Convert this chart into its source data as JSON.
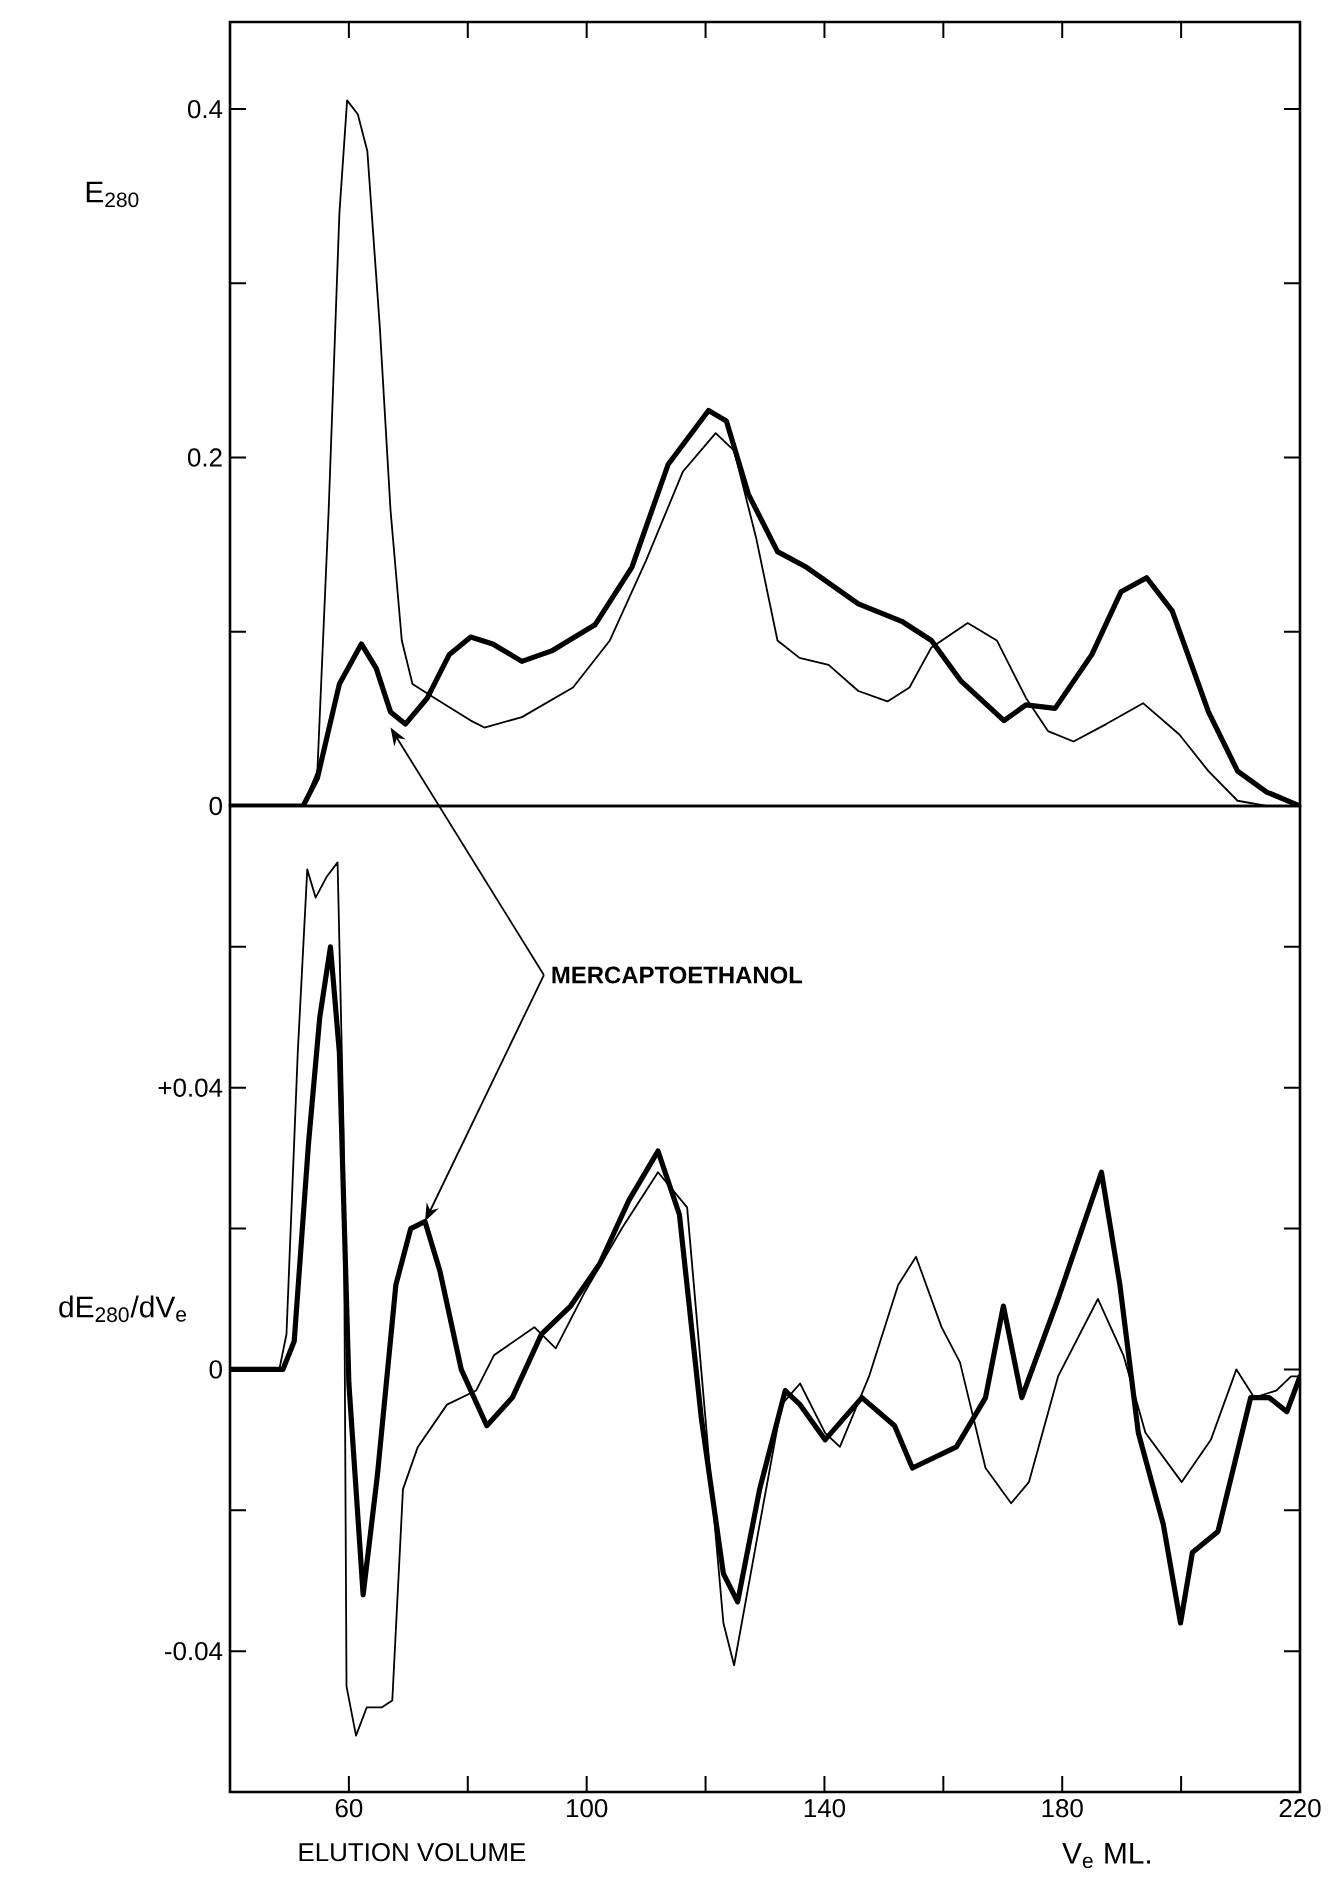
{
  "chart_data": [
    {
      "type": "line",
      "ylabel": "E$_{280}$",
      "xlim": [
        40,
        220
      ],
      "ylim": [
        0,
        0.45
      ],
      "xticks": [
        {
          "value": 60,
          "label": null
        },
        {
          "value": 80,
          "label": null
        },
        {
          "value": 100,
          "label": null
        },
        {
          "value": 120,
          "label": null
        },
        {
          "value": 140,
          "label": null
        },
        {
          "value": 160,
          "label": null
        },
        {
          "value": 180,
          "label": null
        },
        {
          "value": 200,
          "label": null
        }
      ],
      "yticks": [
        {
          "value": 0,
          "label": "0"
        },
        {
          "value": 0.1,
          "label": null
        },
        {
          "value": 0.2,
          "label": "0.2"
        },
        {
          "value": 0.3,
          "label": null
        },
        {
          "value": 0.4,
          "label": "0.4"
        }
      ],
      "tick_labels": "y",
      "marker": "none",
      "series": [
        {
          "color": "#000000",
          "x": [
            40,
            52.3,
            54.7,
            56.6,
            58.4,
            59.7,
            61.5,
            63.1,
            65.2,
            67.0,
            68.9,
            70.7,
            74.4,
            80.5,
            82.8,
            89.1,
            97.7,
            103.9,
            110.0,
            116.2,
            121.7,
            124.8,
            128.5,
            132.1,
            135.8,
            140.7,
            145.7,
            150.6,
            154.3,
            158.0,
            164.1,
            169.0,
            173.9,
            177.6,
            181.9,
            187.4,
            193.6,
            199.7,
            204.6,
            209.5,
            214.4,
            220
          ],
          "values": [
            0,
            0,
            0.02,
            0.17,
            0.34,
            0.405,
            0.397,
            0.376,
            0.275,
            0.17,
            0.095,
            0.07,
            0.062,
            0.049,
            0.045,
            0.051,
            0.068,
            0.095,
            0.141,
            0.192,
            0.214,
            0.204,
            0.154,
            0.095,
            0.085,
            0.081,
            0.066,
            0.06,
            0.068,
            0.091,
            0.105,
            0.095,
            0.062,
            0.043,
            0.037,
            0.047,
            0.059,
            0.041,
            0.02,
            0.003,
            0,
            0
          ]
        },
        {
          "color": "#000000",
          "x": [
            40,
            52.3,
            54.7,
            58.4,
            62.1,
            64.6,
            67.0,
            69.5,
            73.2,
            76.9,
            80.5,
            84.2,
            89.1,
            94.1,
            101.4,
            107.6,
            113.7,
            120.5,
            123.5,
            127.2,
            132.1,
            137.0,
            145.7,
            153.0,
            158.0,
            162.9,
            170.2,
            173.9,
            178.8,
            185.0,
            189.9,
            194.2,
            198.5,
            204.6,
            209.5,
            214.4,
            220
          ],
          "values": [
            0,
            0,
            0.016,
            0.07,
            0.093,
            0.079,
            0.054,
            0.047,
            0.062,
            0.087,
            0.097,
            0.093,
            0.083,
            0.089,
            0.104,
            0.137,
            0.196,
            0.227,
            0.221,
            0.179,
            0.146,
            0.137,
            0.116,
            0.106,
            0.095,
            0.072,
            0.049,
            0.058,
            0.056,
            0.087,
            0.123,
            0.131,
            0.112,
            0.054,
            0.02,
            0.008,
            0
          ]
        }
      ]
    },
    {
      "type": "line",
      "xlabel": "ELUTION VOLUME",
      "ylabel": "dE$_{280}$/dV$_{e}$",
      "xlim": [
        40,
        220
      ],
      "ylim": [
        -0.06,
        0.08
      ],
      "xticks": [
        60,
        {
          "value": 80,
          "label": null
        },
        100,
        {
          "value": 120,
          "label": null
        },
        140,
        {
          "value": 160,
          "label": null
        },
        180,
        {
          "value": 200,
          "label": null
        },
        220
      ],
      "yticks": [
        {
          "value": -0.04,
          "label": "-0.04"
        },
        {
          "value": -0.02,
          "label": null
        },
        {
          "value": 0,
          "label": "0"
        },
        {
          "value": 0.02,
          "label": null
        },
        {
          "value": 0.04,
          "label": "+0.04"
        },
        {
          "value": 0.06,
          "label": null
        }
      ],
      "marker": "none",
      "annotations": [
        {
          "text": "MERCAPTOETHANOL",
          "x": 72.8,
          "y": 0.021
        },
        "V$_{e}$ ML."
      ],
      "series": [
        {
          "color": "#000000",
          "x": [
            40,
            48.3,
            49.5,
            51.4,
            53.0,
            54.4,
            56.3,
            58.1,
            59.1,
            59.6,
            61.2,
            63.0,
            65.5,
            67.3,
            69.1,
            71.6,
            76.5,
            81.4,
            84.4,
            91.2,
            94.8,
            99.7,
            105.9,
            112.0,
            116.9,
            120.5,
            123.0,
            124.8,
            129.1,
            132.8,
            135.9,
            140.1,
            142.6,
            147.5,
            152.4,
            155.4,
            159.7,
            162.8,
            167.1,
            171.4,
            174.4,
            179.3,
            186.0,
            190.3,
            194.0,
            200.1,
            205.0,
            209.3,
            212.3,
            216.0,
            218.5,
            220
          ],
          "values": [
            0,
            0,
            0.005,
            0.045,
            0.071,
            0.067,
            0.07,
            0.072,
            0.034,
            -0.045,
            -0.052,
            -0.048,
            -0.048,
            -0.047,
            -0.017,
            -0.011,
            -0.005,
            -0.003,
            0.002,
            0.006,
            0.003,
            0.011,
            0.02,
            0.028,
            0.023,
            -0.012,
            -0.036,
            -0.042,
            -0.022,
            -0.005,
            -0.002,
            -0.009,
            -0.011,
            -0.001,
            0.012,
            0.016,
            0.006,
            0.001,
            -0.014,
            -0.019,
            -0.016,
            -0.001,
            0.01,
            0.002,
            -0.009,
            -0.016,
            -0.01,
            0,
            -0.004,
            -0.003,
            -0.001,
            -0.001
          ]
        },
        {
          "color": "#000000",
          "x": [
            40,
            48.9,
            50.8,
            53.2,
            55.1,
            56.9,
            58.4,
            60.0,
            62.4,
            64.8,
            67.9,
            70.4,
            72.8,
            75.3,
            78.9,
            83.2,
            87.5,
            92.4,
            97.3,
            102.2,
            107.1,
            112.0,
            115.6,
            119.3,
            123.0,
            125.4,
            129.1,
            133.4,
            135.9,
            140.1,
            146.3,
            151.8,
            154.8,
            162.2,
            167.1,
            170.1,
            173.2,
            179.3,
            186.6,
            189.7,
            192.8,
            197.0,
            199.9,
            201.9,
            206.2,
            211.7,
            214.8,
            217.8,
            220
          ],
          "values": [
            0,
            0,
            0.004,
            0.032,
            0.05,
            0.06,
            0.045,
            -0.002,
            -0.032,
            -0.015,
            0.012,
            0.02,
            0.021,
            0.014,
            0,
            -0.008,
            -0.004,
            0.005,
            0.009,
            0.015,
            0.024,
            0.031,
            0.022,
            -0.007,
            -0.029,
            -0.033,
            -0.017,
            -0.003,
            -0.005,
            -0.01,
            -0.004,
            -0.008,
            -0.014,
            -0.011,
            -0.004,
            0.009,
            -0.004,
            0.01,
            0.028,
            0.012,
            -0.009,
            -0.022,
            -0.036,
            -0.026,
            -0.023,
            -0.004,
            -0.004,
            -0.006,
            -0.001
          ]
        }
      ]
    }
  ]
}
